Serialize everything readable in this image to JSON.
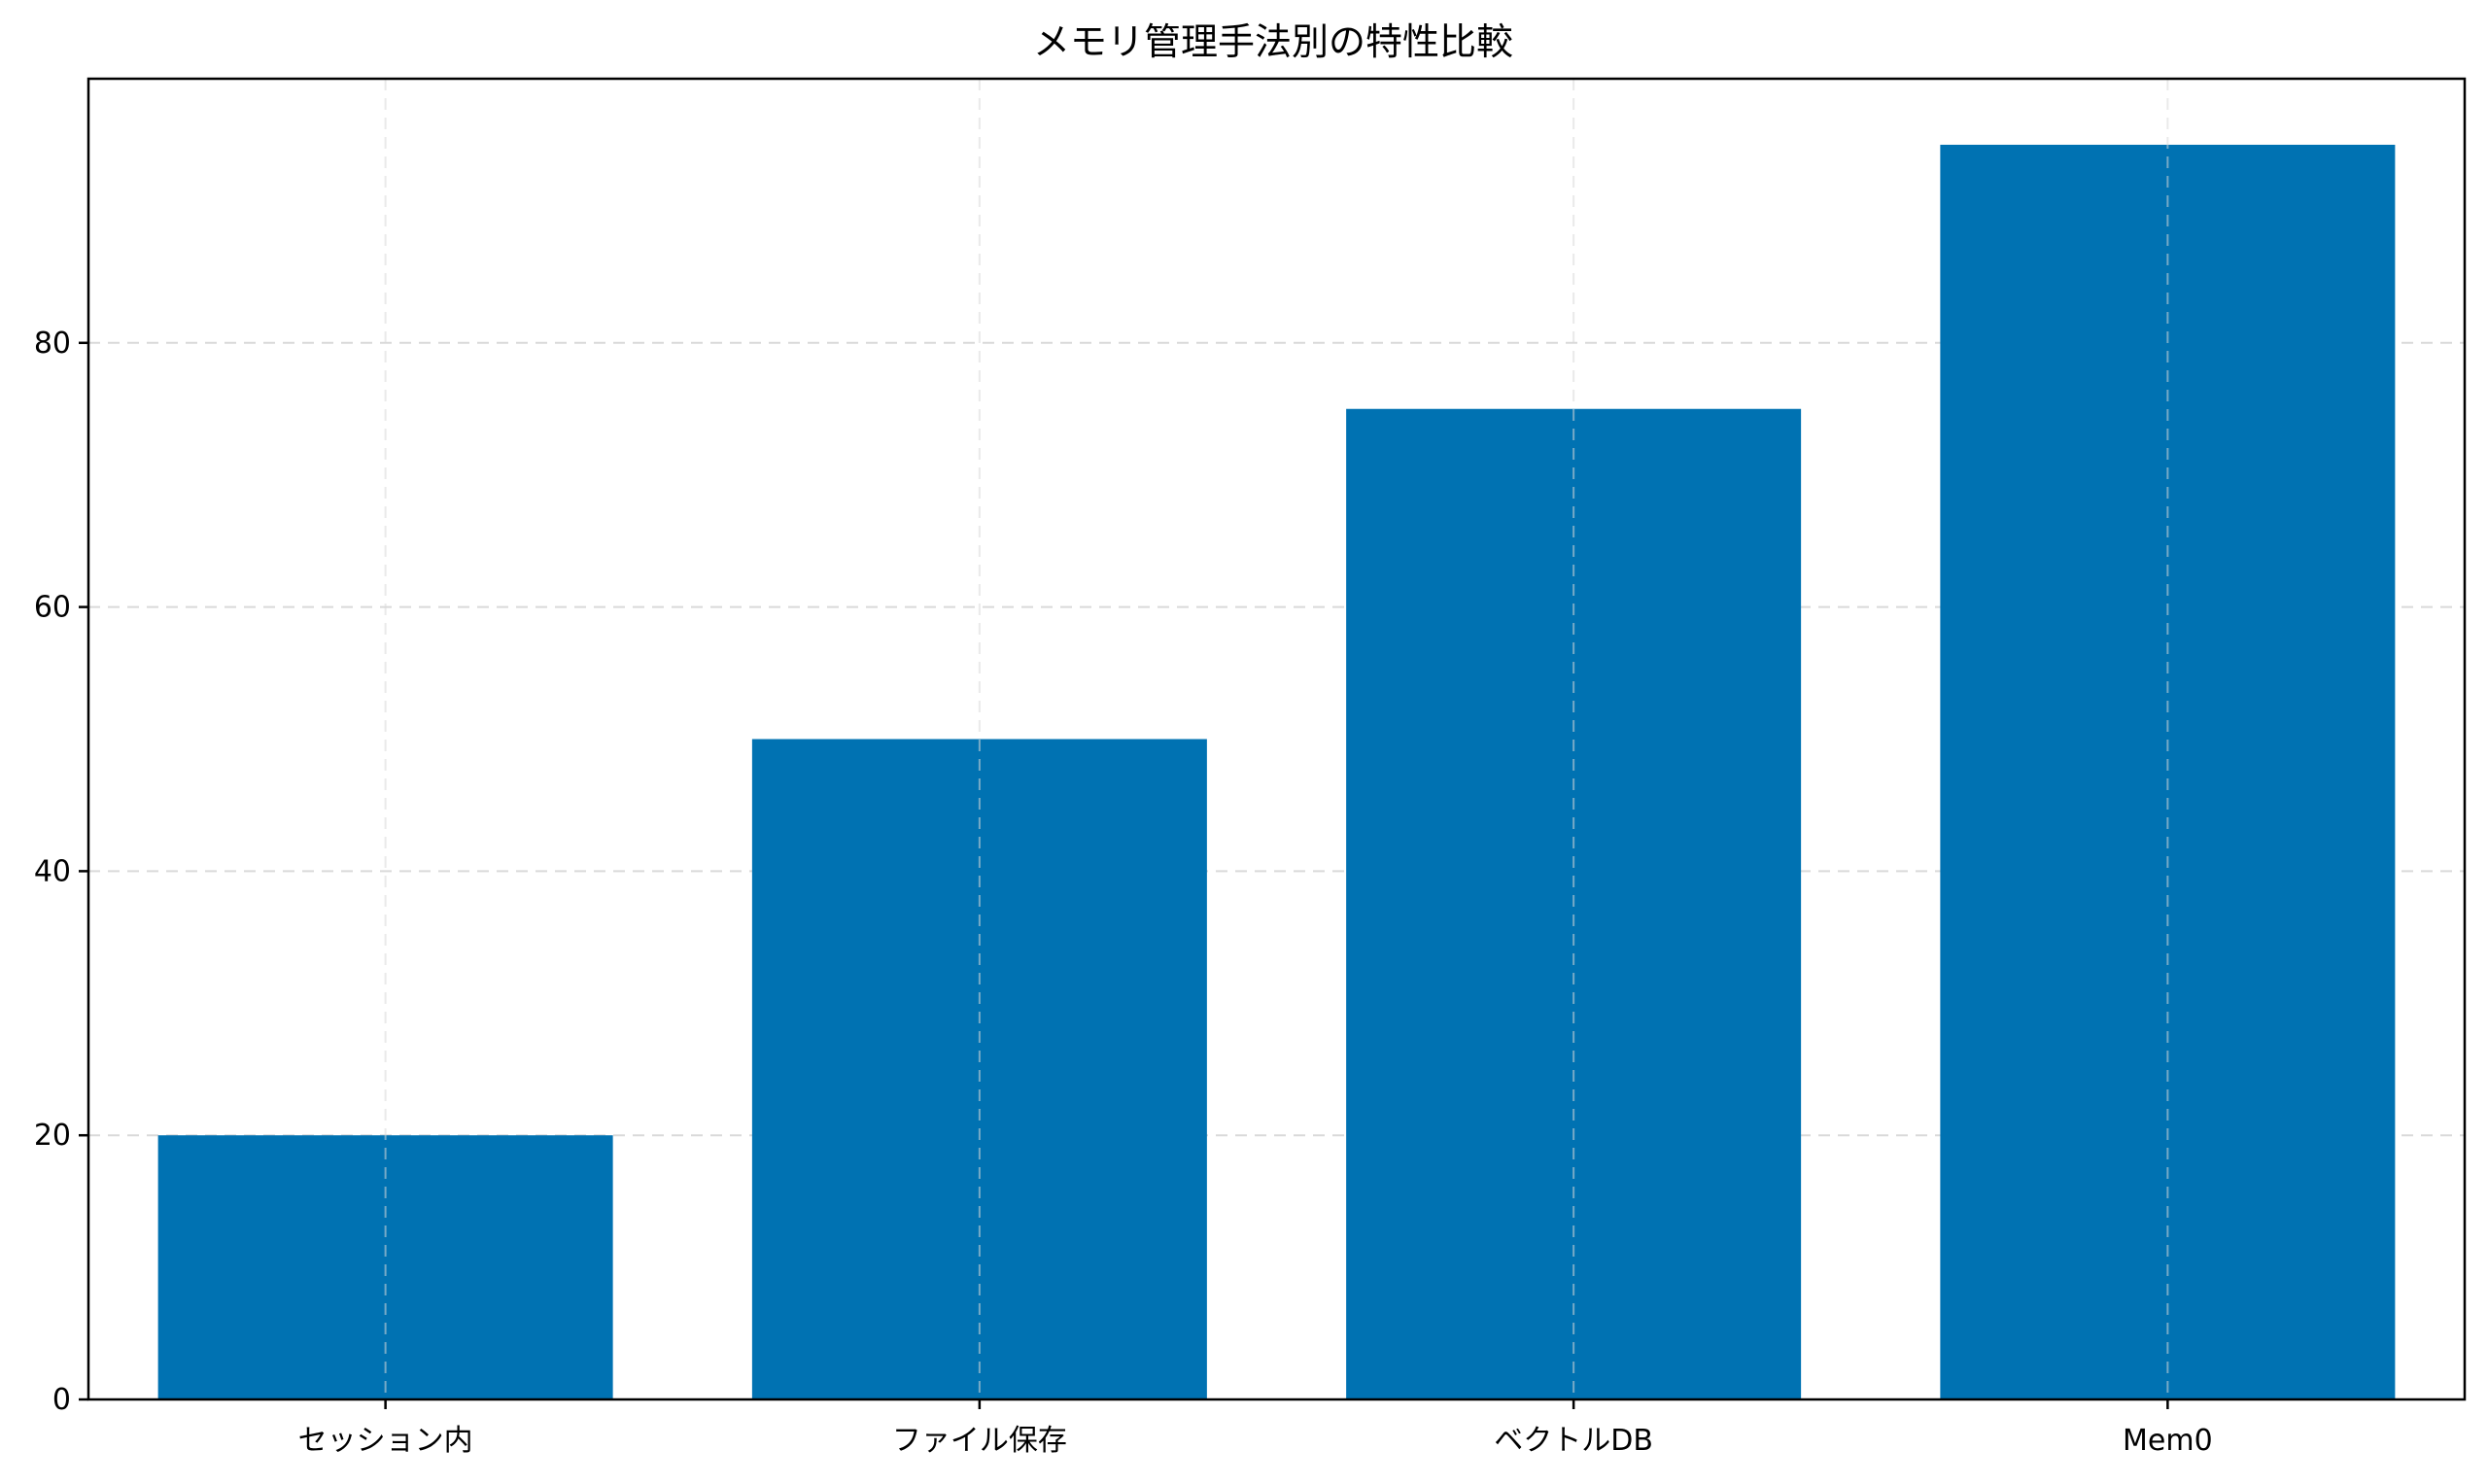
{
  "chart_data": {
    "type": "bar",
    "title": "メモリ管理手法別の特性比較",
    "xlabel": "",
    "ylabel": "",
    "categories": [
      "セッション内",
      "ファイル保存",
      "ベクトルDB",
      "Mem0"
    ],
    "values": [
      20,
      50,
      75,
      95
    ],
    "ylim": [
      0,
      100
    ],
    "yticks": [
      "0",
      "20",
      "40",
      "60",
      "80"
    ],
    "grid": true,
    "legend": "none",
    "colors": {
      "bar": "#0072B2",
      "grid": "#d9d9d9",
      "axis": "#000000",
      "background": "#ffffff"
    }
  }
}
